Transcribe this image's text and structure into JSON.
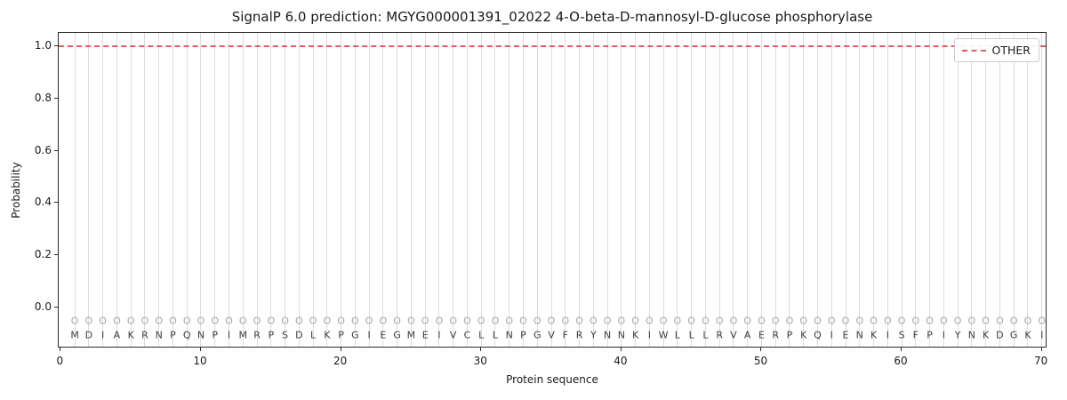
{
  "chart_data": {
    "type": "line",
    "title": "SignalP 6.0 prediction: MGYG000001391_02022 4-O-beta-D-mannosyl-D-glucose phosphorylase",
    "xlabel": "Protein sequence",
    "ylabel": "Probability",
    "xlim": [
      -0.15,
      70.4
    ],
    "ylim": [
      -0.155,
      1.05
    ],
    "xticks": [
      "0",
      "10",
      "20",
      "30",
      "40",
      "50",
      "60",
      "70"
    ],
    "xtick_values": [
      0,
      10,
      20,
      30,
      40,
      50,
      60,
      70
    ],
    "yticks": [
      "0.0",
      "0.2",
      "0.4",
      "0.6",
      "0.8",
      "1.0"
    ],
    "ytick_values": [
      0.0,
      0.2,
      0.4,
      0.6,
      0.8,
      1.0
    ],
    "grid": "vertical gridline at each residue position",
    "legend_position": "upper right",
    "series": [
      {
        "name": "OTHER",
        "color": "#e25d5d",
        "linestyle": "dashed",
        "y_constant": 1.0,
        "x_start": 1,
        "x_end": 70
      }
    ],
    "sequence": "MDIAKRNPQNPIMRPSDLKPGIEGMEIVCLLNPGVFRYNNKIWLLLRVAERPKQIENKISFPIYNKDGKI",
    "sequence_length": 70,
    "per_position_marker": "O",
    "marker_y": -0.05,
    "letter_y": -0.105,
    "marker_color": "#a6a6a6",
    "letter_color": "#3d3d3d",
    "gridline_color": "#dcdcdc"
  }
}
